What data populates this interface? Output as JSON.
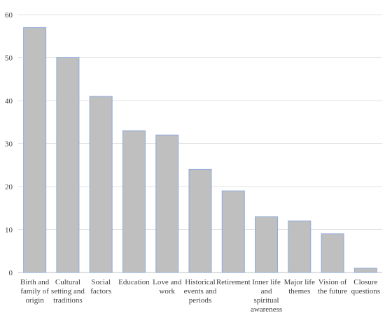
{
  "chart_data": {
    "type": "bar",
    "categories": [
      [
        "Birth and",
        "family of",
        "origin"
      ],
      [
        "Cultural",
        "setting and",
        "traditions"
      ],
      [
        "Social",
        "factors"
      ],
      [
        "Education"
      ],
      [
        "Love and",
        "work"
      ],
      [
        "Historical",
        "events and",
        "periods"
      ],
      [
        "Retirement"
      ],
      [
        "Inner life",
        "and",
        "spiritual",
        "awareness"
      ],
      [
        "Major life",
        "themes"
      ],
      [
        "Vision of",
        "the future"
      ],
      [
        "Closure",
        "questions"
      ]
    ],
    "values": [
      57,
      50,
      41,
      33,
      32,
      24,
      19,
      13,
      12,
      9,
      1
    ],
    "ylim": [
      0,
      60
    ],
    "yticks": [
      0,
      10,
      20,
      30,
      40,
      50,
      60
    ],
    "grid": true,
    "colors": {
      "bar_fill": "#bfbfbf",
      "bar_stroke": "#8faadc",
      "grid": "#e3e3e3",
      "axis": "#bfbfbf"
    }
  }
}
